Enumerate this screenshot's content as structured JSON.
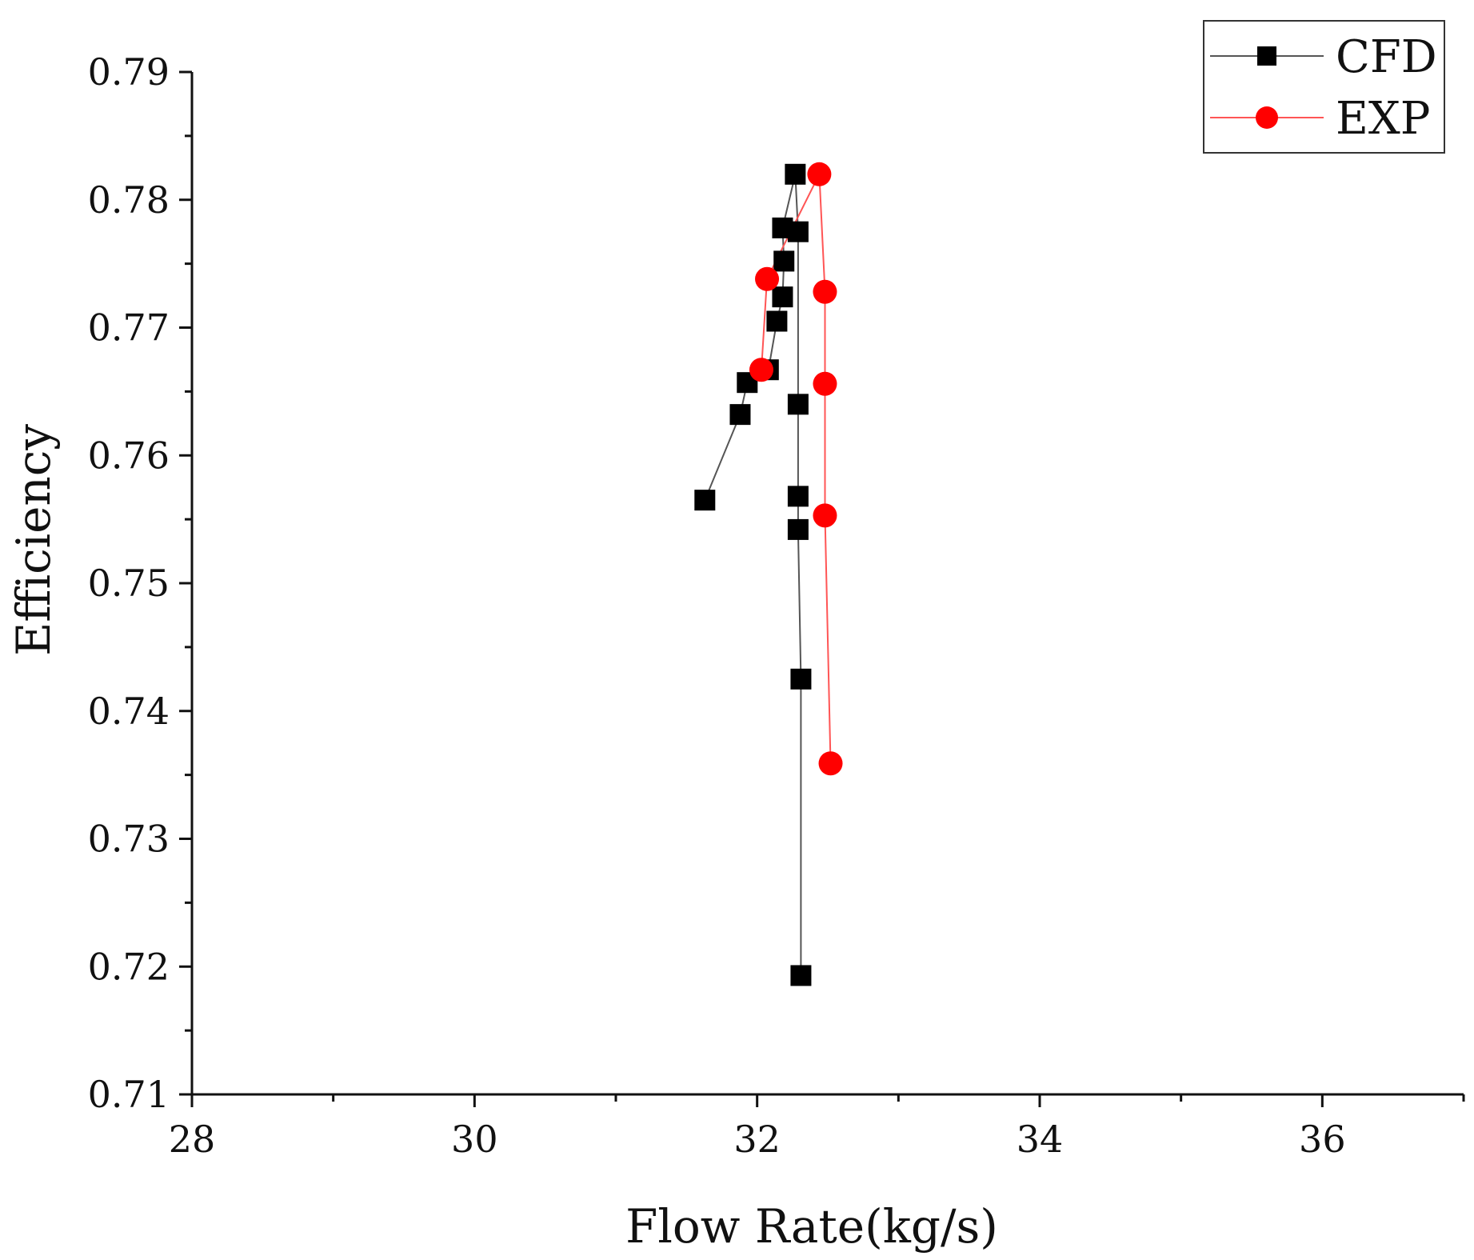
{
  "chart_data": {
    "type": "line",
    "title": "",
    "xlabel": "Flow Rate(kg/s)",
    "ylabel": "Efficiency",
    "xlim": [
      28,
      37
    ],
    "ylim": [
      0.71,
      0.79
    ],
    "xticks": [
      28,
      30,
      32,
      34,
      36
    ],
    "xtick_labels": [
      "28",
      "30",
      "32",
      "34",
      "36"
    ],
    "yticks": [
      0.71,
      0.72,
      0.73,
      0.74,
      0.75,
      0.76,
      0.77,
      0.78,
      0.79
    ],
    "ytick_labels": [
      "0.71",
      "0.72",
      "0.73",
      "0.74",
      "0.75",
      "0.76",
      "0.77",
      "0.78",
      "0.79"
    ],
    "grid": false,
    "legend_position": "top-right",
    "series": [
      {
        "name": "CFD",
        "color": "#000000",
        "line_color": "#555555",
        "marker": "square",
        "points": [
          {
            "x": 31.63,
            "y": 0.7565
          },
          {
            "x": 31.88,
            "y": 0.7632
          },
          {
            "x": 31.93,
            "y": 0.7657
          },
          {
            "x": 32.08,
            "y": 0.7667
          },
          {
            "x": 32.14,
            "y": 0.7705
          },
          {
            "x": 32.18,
            "y": 0.7724
          },
          {
            "x": 32.19,
            "y": 0.7752
          },
          {
            "x": 32.18,
            "y": 0.7778
          },
          {
            "x": 32.27,
            "y": 0.782
          },
          {
            "x": 32.29,
            "y": 0.7775
          },
          {
            "x": 32.29,
            "y": 0.764
          },
          {
            "x": 32.29,
            "y": 0.7568
          },
          {
            "x": 32.29,
            "y": 0.7542
          },
          {
            "x": 32.31,
            "y": 0.7425
          },
          {
            "x": 32.31,
            "y": 0.7193
          }
        ]
      },
      {
        "name": "EXP",
        "color": "#ff0000",
        "line_color": "#ff5555",
        "marker": "circle",
        "points": [
          {
            "x": 32.03,
            "y": 0.7667
          },
          {
            "x": 32.07,
            "y": 0.7738
          },
          {
            "x": 32.44,
            "y": 0.782
          },
          {
            "x": 32.48,
            "y": 0.7728
          },
          {
            "x": 32.48,
            "y": 0.7656
          },
          {
            "x": 32.48,
            "y": 0.7553
          },
          {
            "x": 32.52,
            "y": 0.7359
          }
        ]
      }
    ]
  }
}
